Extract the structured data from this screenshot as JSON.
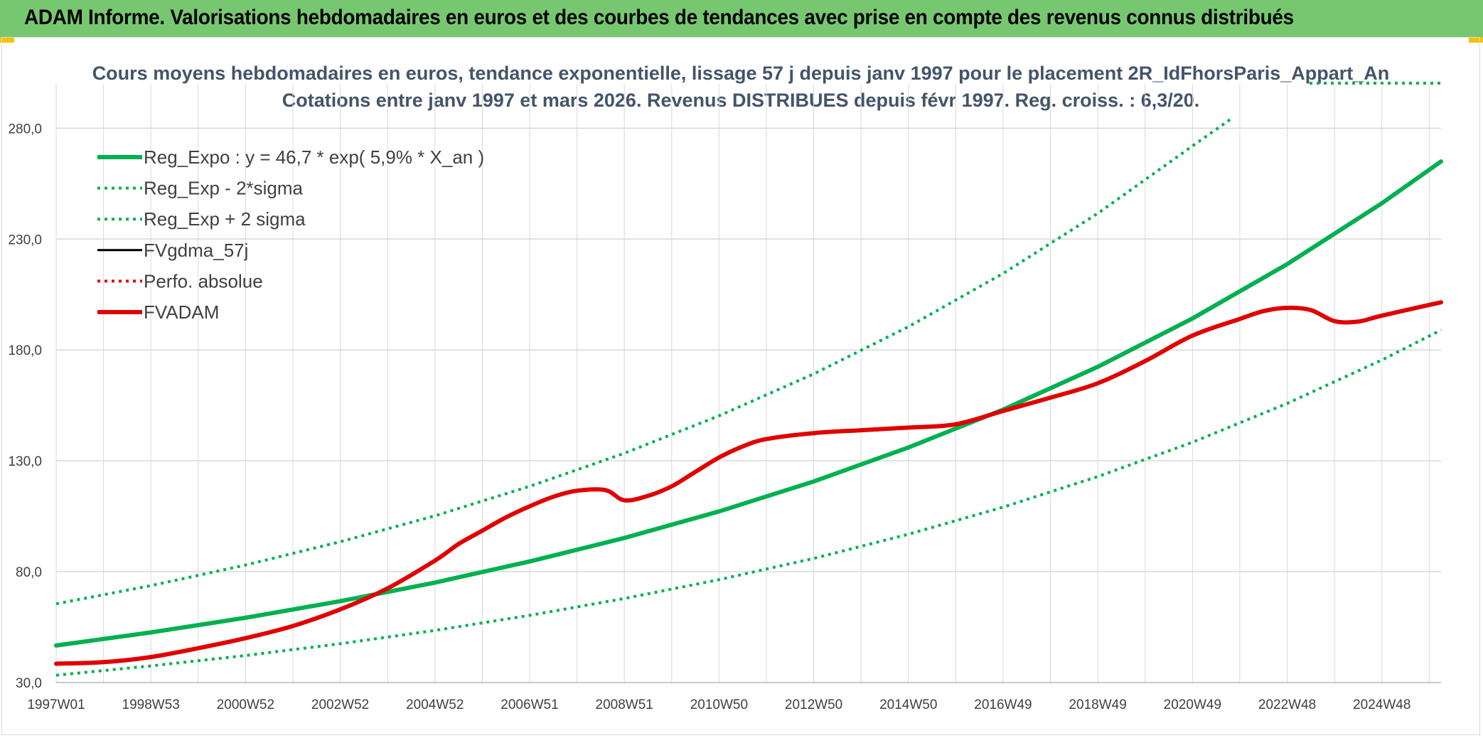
{
  "header": {
    "title": "ADAM Informe. Valorisations hebdomadaires en euros et des courbes de tendances avec prise en compte des revenus connus distribués"
  },
  "colors": {
    "banner": "#77c771",
    "reg_expo": "#00b050",
    "fvadam": "#e00000",
    "fvgdma": "#000000",
    "perfo": "#e00000",
    "grid": "#d9d9d9"
  },
  "chart_data": {
    "type": "line",
    "title": "Cours moyens hebdomadaires en euros, tendance exponentielle, lissage 57 j depuis janv 1997 pour le placement 2R_IdFhorsParis_Appart_An",
    "subtitle": "Cotations entre janv 1997 et mars 2026. Revenus DISTRIBUES depuis févr 1997. Reg. croiss. : 6,3/20.",
    "xlabel": "",
    "ylabel": "",
    "ylim": [
      30,
      300
    ],
    "yticks": [
      30,
      80,
      130,
      180,
      230,
      280
    ],
    "ytick_labels": [
      "30,0",
      "80,0",
      "130,0",
      "180,0",
      "230,0",
      "280,0"
    ],
    "xlim": [
      1997.0,
      2026.25
    ],
    "xticks": [
      1997.0,
      1999.0,
      2001.0,
      2003.0,
      2005.0,
      2007.0,
      2009.0,
      2011.0,
      2013.0,
      2015.0,
      2017.0,
      2019.0,
      2021.0,
      2023.0,
      2025.0
    ],
    "xtick_labels": [
      "1997W01",
      "1998W53",
      "2000W52",
      "2002W52",
      "2004W52",
      "2006W51",
      "2008W51",
      "2010W50",
      "2012W50",
      "2014W50",
      "2016W49",
      "2018W49",
      "2020W49",
      "2022W48",
      "2024W48"
    ],
    "grid": true,
    "legend_position": "top-left",
    "series": [
      {
        "name": "Reg_Expo : y = 46,7 * exp( 5,9% *  X_an )",
        "style": "solid-thick",
        "color": "#00b050",
        "x": [
          1997,
          1999,
          2001,
          2003,
          2005,
          2007,
          2009,
          2011,
          2013,
          2015,
          2017,
          2019,
          2021,
          2023,
          2025,
          2026.25
        ],
        "values": [
          46.7,
          52.6,
          59.2,
          66.7,
          75.1,
          84.6,
          95.2,
          107.2,
          120.7,
          136.0,
          153.1,
          172.4,
          194.2,
          218.7,
          246.2,
          265.0
        ]
      },
      {
        "name": "Reg_Exp - 2*sigma",
        "style": "dotted",
        "color": "#00b050",
        "x": [
          1997,
          1999,
          2001,
          2003,
          2005,
          2007,
          2009,
          2011,
          2013,
          2015,
          2017,
          2019,
          2021,
          2023,
          2025,
          2026.25
        ],
        "values": [
          33.3,
          37.5,
          42.2,
          47.5,
          53.5,
          60.3,
          67.9,
          76.4,
          86.0,
          96.9,
          109.1,
          122.9,
          138.4,
          155.9,
          175.5,
          189.0
        ]
      },
      {
        "name": "Reg_Exp + 2 sigma",
        "style": "dotted",
        "color": "#00b050",
        "x": [
          1997,
          1999,
          2001,
          2003,
          2005,
          2007,
          2009,
          2011,
          2013,
          2015,
          2017,
          2019,
          2021,
          2021.8
        ],
        "values": [
          65.5,
          73.7,
          83.0,
          93.5,
          105.2,
          118.5,
          133.4,
          150.3,
          169.2,
          190.5,
          214.5,
          241.6,
          272.0,
          284.0
        ]
      },
      {
        "name": "FVgdma_57j",
        "style": "solid",
        "color": "#000000",
        "x": [],
        "values": []
      },
      {
        "name": "Perfo. absolue",
        "style": "dotted",
        "color": "#e00000",
        "x": [],
        "values": []
      },
      {
        "name": "FVADAM",
        "style": "solid-thick",
        "color": "#e00000",
        "x": [
          1997,
          1998,
          1999,
          2000,
          2001,
          2002,
          2003,
          2004,
          2005,
          2005.5,
          2006,
          2006.5,
          2007,
          2007.5,
          2008,
          2008.6,
          2009,
          2009.5,
          2010,
          2010.5,
          2011,
          2011.5,
          2012,
          2013,
          2014,
          2015,
          2016,
          2017,
          2018,
          2019,
          2020,
          2021,
          2022,
          2022.5,
          2023,
          2023.5,
          2024,
          2024.5,
          2025,
          2026.25
        ],
        "values": [
          38.5,
          39.2,
          41.5,
          45.5,
          50.0,
          55.5,
          63.0,
          72.5,
          85.0,
          92.5,
          98.5,
          104.5,
          109.5,
          113.8,
          116.5,
          116.8,
          112.2,
          114.2,
          118.5,
          125.0,
          131.5,
          136.5,
          139.8,
          142.5,
          143.8,
          145.0,
          146.5,
          152.5,
          158.5,
          165.0,
          175.0,
          186.5,
          194.0,
          197.5,
          199.0,
          198.0,
          193.0,
          192.8,
          195.5,
          201.5
        ]
      }
    ]
  }
}
